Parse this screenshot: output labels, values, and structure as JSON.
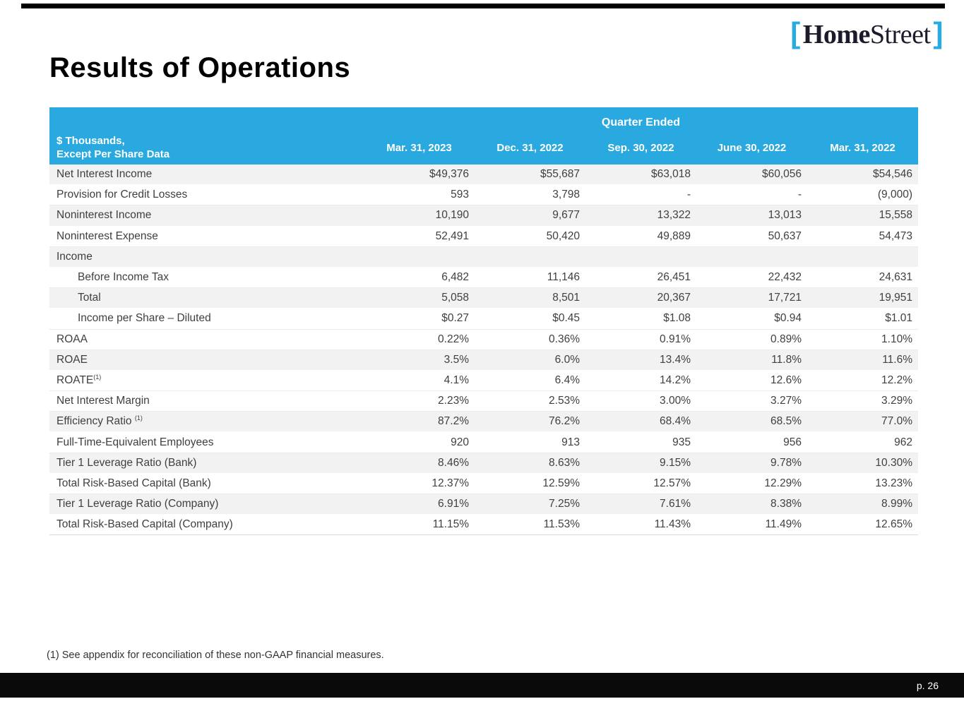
{
  "logo": {
    "bracket_left": "[",
    "name_bold": "Home",
    "name_regular": "Street",
    "bracket_right": "]"
  },
  "title": "Results of Operations",
  "table": {
    "group_header": "Quarter Ended",
    "row_label_line1": "$ Thousands,",
    "row_label_line2": "Except Per Share Data",
    "columns": [
      "Mar. 31, 2023",
      "Dec. 31, 2022",
      "Sep. 30, 2022",
      "June 30, 2022",
      "Mar. 31, 2022"
    ],
    "rows": [
      {
        "label": "Net Interest Income",
        "shaded": true,
        "indent": false,
        "values": [
          "$49,376",
          "$55,687",
          "$63,018",
          "$60,056",
          "$54,546"
        ]
      },
      {
        "label": "Provision for Credit Losses",
        "shaded": false,
        "indent": false,
        "values": [
          "593",
          "3,798",
          "-",
          "-",
          "(9,000)"
        ]
      },
      {
        "label": "Noninterest Income",
        "shaded": true,
        "indent": false,
        "values": [
          "10,190",
          "9,677",
          "13,322",
          "13,013",
          "15,558"
        ]
      },
      {
        "label": "Noninterest Expense",
        "shaded": false,
        "indent": false,
        "values": [
          "52,491",
          "50,420",
          "49,889",
          "50,637",
          "54,473"
        ]
      },
      {
        "label": "Income",
        "shaded": true,
        "indent": false,
        "values": [
          "",
          "",
          "",
          "",
          ""
        ]
      },
      {
        "label": "Before Income Tax",
        "shaded": false,
        "indent": true,
        "values": [
          "6,482",
          "11,146",
          "26,451",
          "22,432",
          "24,631"
        ]
      },
      {
        "label": "Total",
        "shaded": true,
        "indent": true,
        "values": [
          "5,058",
          "8,501",
          "20,367",
          "17,721",
          "19,951"
        ]
      },
      {
        "label": "Income per Share – Diluted",
        "shaded": false,
        "indent": true,
        "values": [
          "$0.27",
          "$0.45",
          "$1.08",
          "$0.94",
          "$1.01"
        ]
      },
      {
        "label": "ROAA",
        "shaded": false,
        "indent": false,
        "values": [
          "0.22%",
          "0.36%",
          "0.91%",
          "0.89%",
          "1.10%"
        ]
      },
      {
        "label": "ROAE",
        "shaded": true,
        "indent": false,
        "values": [
          "3.5%",
          "6.0%",
          "13.4%",
          "11.8%",
          "11.6%"
        ]
      },
      {
        "label": "ROATE",
        "sup": "(1)",
        "shaded": false,
        "indent": false,
        "values": [
          "4.1%",
          "6.4%",
          "14.2%",
          "12.6%",
          "12.2%"
        ]
      },
      {
        "label": "Net Interest Margin",
        "shaded": false,
        "indent": false,
        "values": [
          "2.23%",
          "2.53%",
          "3.00%",
          "3.27%",
          "3.29%"
        ]
      },
      {
        "label": "Efficiency Ratio ",
        "sup": "(1)",
        "shaded": true,
        "indent": false,
        "values": [
          "87.2%",
          "76.2%",
          "68.4%",
          "68.5%",
          "77.0%"
        ]
      },
      {
        "label": "Full-Time-Equivalent Employees",
        "shaded": false,
        "indent": false,
        "values": [
          "920",
          "913",
          "935",
          "956",
          "962"
        ]
      },
      {
        "label": "Tier 1 Leverage Ratio (Bank)",
        "shaded": true,
        "indent": false,
        "values": [
          "8.46%",
          "8.63%",
          "9.15%",
          "9.78%",
          "10.30%"
        ]
      },
      {
        "label": "Total Risk-Based Capital (Bank)",
        "shaded": false,
        "indent": false,
        "values": [
          "12.37%",
          "12.59%",
          "12.57%",
          "12.29%",
          "13.23%"
        ]
      },
      {
        "label": "Tier 1 Leverage Ratio (Company)",
        "shaded": true,
        "indent": false,
        "values": [
          "6.91%",
          "7.25%",
          "7.61%",
          "8.38%",
          "8.99%"
        ]
      },
      {
        "label": "Total Risk-Based Capital (Company)",
        "shaded": false,
        "indent": false,
        "values": [
          "11.15%",
          "11.53%",
          "11.43%",
          "11.49%",
          "12.65%"
        ]
      }
    ]
  },
  "footnote": "(1) See appendix for reconciliation of these non-GAAP financial measures.",
  "footer": {
    "page": "p. 26"
  },
  "colors": {
    "brand_blue": "#29ABE2",
    "header_blue": "#29A9E0",
    "row_shade": "#F2F2F2",
    "body_text": "#404040",
    "footer_black": "#0A0A0A"
  }
}
